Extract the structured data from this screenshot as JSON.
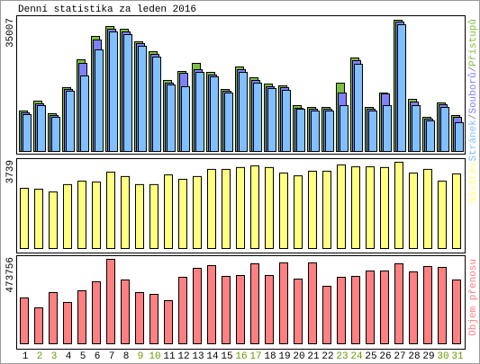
{
  "title": "Denní statistika za leden 2016",
  "chart_data": [
    {
      "type": "bar",
      "series": [
        {
          "name": "Přístupů",
          "color": "#80c040",
          "values": [
            10790,
            13430,
            10070,
            17020,
            24460,
            30690,
            33330,
            32610,
            29250,
            26610,
            18940,
            21340,
            23500,
            21100,
            16540,
            22540,
            19660,
            17980,
            17500,
            12230,
            11750,
            11750,
            18220,
            24940,
            11750,
            15590,
            35007,
            13910,
            9110,
            12950,
            9590
          ]
        },
        {
          "name": "Souborů",
          "color": "#8080ff",
          "values": [
            10310,
            12710,
            9590,
            16550,
            23500,
            29740,
            32610,
            31890,
            28780,
            25900,
            18220,
            20860,
            21820,
            20380,
            16070,
            21820,
            18940,
            17270,
            17030,
            11510,
            11270,
            11270,
            15590,
            24220,
            11270,
            15350,
            34530,
            13190,
            8630,
            12470,
            9110
          ]
        },
        {
          "name": "Stránek",
          "color": "#80c0ff",
          "values": [
            9830,
            12230,
            9110,
            16070,
            20140,
            27100,
            31890,
            31170,
            28060,
            25180,
            17750,
            17270,
            21100,
            19900,
            15590,
            21100,
            18220,
            16790,
            16310,
            11270,
            10790,
            10790,
            12230,
            23260,
            10790,
            12230,
            33810,
            12230,
            8150,
            11750,
            7670
          ]
        }
      ],
      "legend_separator": "/",
      "ylim": [
        0,
        35007
      ],
      "yticks": [
        35007
      ]
    },
    {
      "type": "bar",
      "series": [
        {
          "name": "Návštěv",
          "color": "#ffff80",
          "values": [
            2610,
            2570,
            2450,
            2770,
            2920,
            2880,
            3310,
            3120,
            2770,
            2770,
            3190,
            3000,
            3120,
            3430,
            3430,
            3510,
            3580,
            3510,
            3270,
            3150,
            3350,
            3350,
            3620,
            3540,
            3540,
            3510,
            3739,
            3270,
            3430,
            2920,
            3230
          ]
        }
      ],
      "ylim": [
        0,
        3739
      ],
      "yticks": [
        3739
      ]
    },
    {
      "type": "bar",
      "series": [
        {
          "name": "Objem přenosu",
          "color": "#ff8080",
          "values": [
            257040,
            201600,
            287280,
            231840,
            297360,
            347760,
            473756,
            357840,
            287280,
            277200,
            241920,
            372960,
            423360,
            438480,
            378000,
            383040,
            448560,
            383040,
            453600,
            362880,
            453600,
            322560,
            372960,
            378000,
            408240,
            408240,
            448560,
            403200,
            433440,
            428400,
            357840
          ]
        }
      ],
      "ylim": [
        0,
        473756
      ],
      "yticks": [
        473756
      ],
      "categories": [
        1,
        2,
        3,
        4,
        5,
        6,
        7,
        8,
        9,
        10,
        11,
        12,
        13,
        14,
        15,
        16,
        17,
        18,
        19,
        20,
        21,
        22,
        23,
        24,
        25,
        26,
        27,
        28,
        29,
        30,
        31
      ],
      "category_colors": [
        "#000000",
        "#669900",
        "#669900",
        "#000000",
        "#000000",
        "#000000",
        "#000000",
        "#000000",
        "#669900",
        "#669900",
        "#000000",
        "#000000",
        "#000000",
        "#000000",
        "#000000",
        "#669900",
        "#669900",
        "#000000",
        "#000000",
        "#000000",
        "#000000",
        "#000000",
        "#669900",
        "#669900",
        "#000000",
        "#000000",
        "#000000",
        "#000000",
        "#000000",
        "#669900",
        "#669900"
      ]
    }
  ]
}
